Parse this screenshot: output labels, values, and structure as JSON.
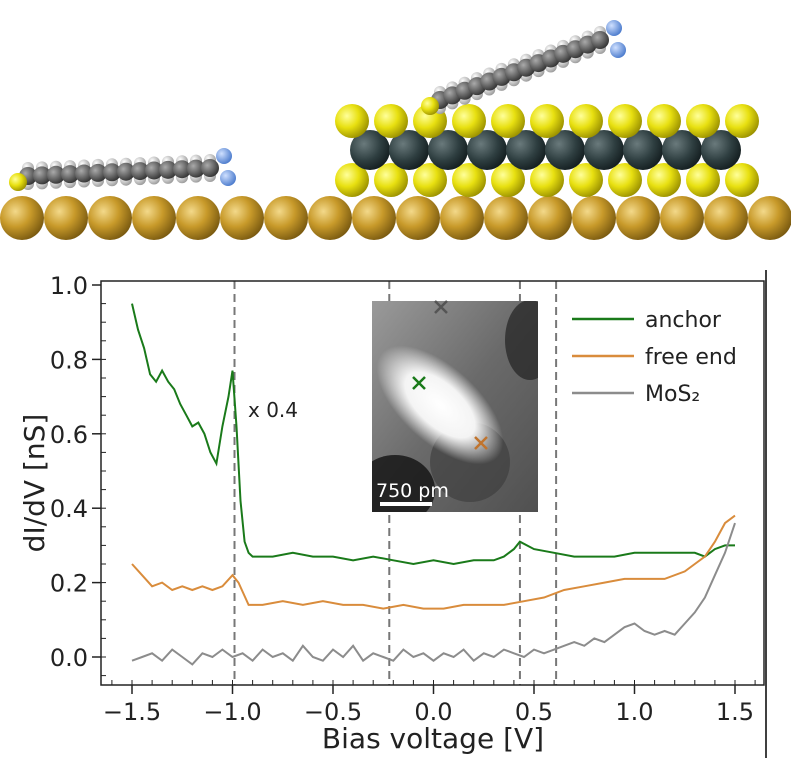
{
  "chart_data": {
    "type": "line",
    "xlabel": "Bias voltage [V]",
    "ylabel": "dI/dV [nS]",
    "xlim": [
      -1.65,
      1.64
    ],
    "ylim": [
      -0.08,
      1.0
    ],
    "xticks": [
      -1.5,
      -1.0,
      -0.5,
      0.0,
      0.5,
      1.0,
      1.5
    ],
    "xtick_labels": [
      "−1.5",
      "−1.0",
      "−0.5",
      "0.0",
      "0.5",
      "1.0",
      "1.5"
    ],
    "yticks": [
      0.0,
      0.2,
      0.4,
      0.6,
      0.8,
      1.0
    ],
    "ytick_labels": [
      "0.0",
      "0.2",
      "0.4",
      "0.6",
      "0.8",
      "1.0"
    ],
    "vlines": [
      -0.99,
      -0.22,
      0.43,
      0.61
    ],
    "annotation": "x 0.4",
    "legend_position": "top-right",
    "series": [
      {
        "name": "anchor",
        "color": "#1a7a1a",
        "x": [
          -1.5,
          -1.47,
          -1.44,
          -1.41,
          -1.38,
          -1.35,
          -1.32,
          -1.29,
          -1.26,
          -1.23,
          -1.2,
          -1.17,
          -1.14,
          -1.11,
          -1.08,
          -1.05,
          -1.02,
          -1.0,
          -0.98,
          -0.96,
          -0.94,
          -0.92,
          -0.9,
          -0.8,
          -0.7,
          -0.6,
          -0.5,
          -0.4,
          -0.3,
          -0.2,
          -0.1,
          0.0,
          0.1,
          0.2,
          0.3,
          0.35,
          0.4,
          0.43,
          0.5,
          0.6,
          0.7,
          0.8,
          0.9,
          1.0,
          1.1,
          1.2,
          1.3,
          1.35,
          1.4,
          1.45,
          1.5
        ],
        "y": [
          0.95,
          0.88,
          0.83,
          0.76,
          0.74,
          0.77,
          0.74,
          0.72,
          0.68,
          0.65,
          0.62,
          0.63,
          0.6,
          0.55,
          0.52,
          0.62,
          0.7,
          0.77,
          0.62,
          0.42,
          0.31,
          0.28,
          0.27,
          0.27,
          0.28,
          0.27,
          0.27,
          0.26,
          0.27,
          0.26,
          0.25,
          0.26,
          0.25,
          0.26,
          0.26,
          0.27,
          0.29,
          0.31,
          0.29,
          0.28,
          0.27,
          0.27,
          0.27,
          0.28,
          0.28,
          0.28,
          0.28,
          0.27,
          0.29,
          0.3,
          0.3
        ]
      },
      {
        "name": "free end",
        "color": "#d98c3c",
        "x": [
          -1.5,
          -1.45,
          -1.4,
          -1.35,
          -1.3,
          -1.25,
          -1.2,
          -1.15,
          -1.1,
          -1.05,
          -1.0,
          -0.97,
          -0.92,
          -0.85,
          -0.75,
          -0.65,
          -0.55,
          -0.45,
          -0.35,
          -0.25,
          -0.15,
          -0.05,
          0.05,
          0.15,
          0.25,
          0.35,
          0.45,
          0.55,
          0.65,
          0.75,
          0.85,
          0.95,
          1.05,
          1.15,
          1.25,
          1.3,
          1.35,
          1.4,
          1.45,
          1.5
        ],
        "y": [
          0.25,
          0.22,
          0.19,
          0.2,
          0.18,
          0.19,
          0.18,
          0.19,
          0.18,
          0.19,
          0.22,
          0.2,
          0.14,
          0.14,
          0.15,
          0.14,
          0.15,
          0.14,
          0.14,
          0.13,
          0.14,
          0.13,
          0.13,
          0.14,
          0.14,
          0.14,
          0.15,
          0.16,
          0.18,
          0.19,
          0.2,
          0.21,
          0.21,
          0.21,
          0.23,
          0.25,
          0.27,
          0.31,
          0.36,
          0.38
        ]
      },
      {
        "name": "MoS₂",
        "color": "#8c8c8c",
        "x": [
          -1.5,
          -1.45,
          -1.4,
          -1.35,
          -1.3,
          -1.25,
          -1.2,
          -1.15,
          -1.1,
          -1.05,
          -1.0,
          -0.95,
          -0.9,
          -0.85,
          -0.8,
          -0.75,
          -0.7,
          -0.65,
          -0.6,
          -0.55,
          -0.5,
          -0.45,
          -0.4,
          -0.35,
          -0.3,
          -0.25,
          -0.2,
          -0.15,
          -0.1,
          -0.05,
          0.0,
          0.05,
          0.1,
          0.15,
          0.2,
          0.25,
          0.3,
          0.35,
          0.4,
          0.45,
          0.5,
          0.55,
          0.6,
          0.65,
          0.7,
          0.75,
          0.8,
          0.85,
          0.9,
          0.95,
          1.0,
          1.05,
          1.1,
          1.15,
          1.2,
          1.25,
          1.3,
          1.35,
          1.4,
          1.45,
          1.5
        ],
        "y": [
          -0.01,
          0.0,
          0.01,
          -0.01,
          0.02,
          0.0,
          -0.02,
          0.01,
          0.0,
          0.02,
          0.0,
          0.01,
          -0.01,
          0.02,
          0.0,
          0.01,
          -0.01,
          0.03,
          0.0,
          -0.01,
          0.02,
          0.0,
          0.03,
          -0.01,
          0.01,
          0.0,
          -0.01,
          0.02,
          0.0,
          0.01,
          -0.01,
          0.01,
          0.0,
          0.02,
          -0.01,
          0.01,
          0.0,
          0.02,
          0.01,
          0.0,
          0.02,
          0.01,
          0.02,
          0.03,
          0.04,
          0.03,
          0.05,
          0.04,
          0.06,
          0.08,
          0.09,
          0.07,
          0.06,
          0.07,
          0.06,
          0.09,
          0.12,
          0.16,
          0.22,
          0.28,
          0.36
        ]
      }
    ],
    "inset": {
      "scale_bar_label": "750 pm",
      "markers": [
        {
          "label": "MoS2",
          "color": "#555555"
        },
        {
          "label": "anchor",
          "color": "#1a7a1a"
        },
        {
          "label": "free end",
          "color": "#c0742e"
        }
      ]
    }
  }
}
